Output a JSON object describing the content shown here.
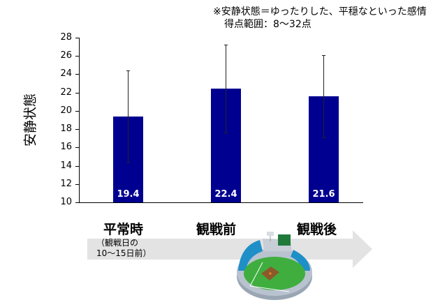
{
  "note": {
    "line1": "※安静状態＝ゆったりした、平穏なといった感情",
    "line2": "得点範囲：8〜32点"
  },
  "categories_sub": {
    "line1": "（観戦日の",
    "line2": "10〜15日前）"
  },
  "illustration": "baseball-stadium",
  "colors": {
    "bar": "#000090",
    "arrow": "#e3e3e3"
  },
  "chart_data": {
    "type": "bar",
    "title": "",
    "xlabel": "",
    "ylabel": "安静状態",
    "categories": [
      "平常時",
      "観戦前",
      "観戦後"
    ],
    "values": [
      19.4,
      22.4,
      21.6
    ],
    "error_bars": [
      5.0,
      4.8,
      4.5
    ],
    "data_labels": [
      "19.4",
      "22.4",
      "21.6"
    ],
    "ylim": [
      10,
      28
    ],
    "yticks": [
      "10",
      "12",
      "14",
      "16",
      "18",
      "20",
      "22",
      "24",
      "26",
      "28"
    ],
    "grid": false,
    "legend": null
  }
}
